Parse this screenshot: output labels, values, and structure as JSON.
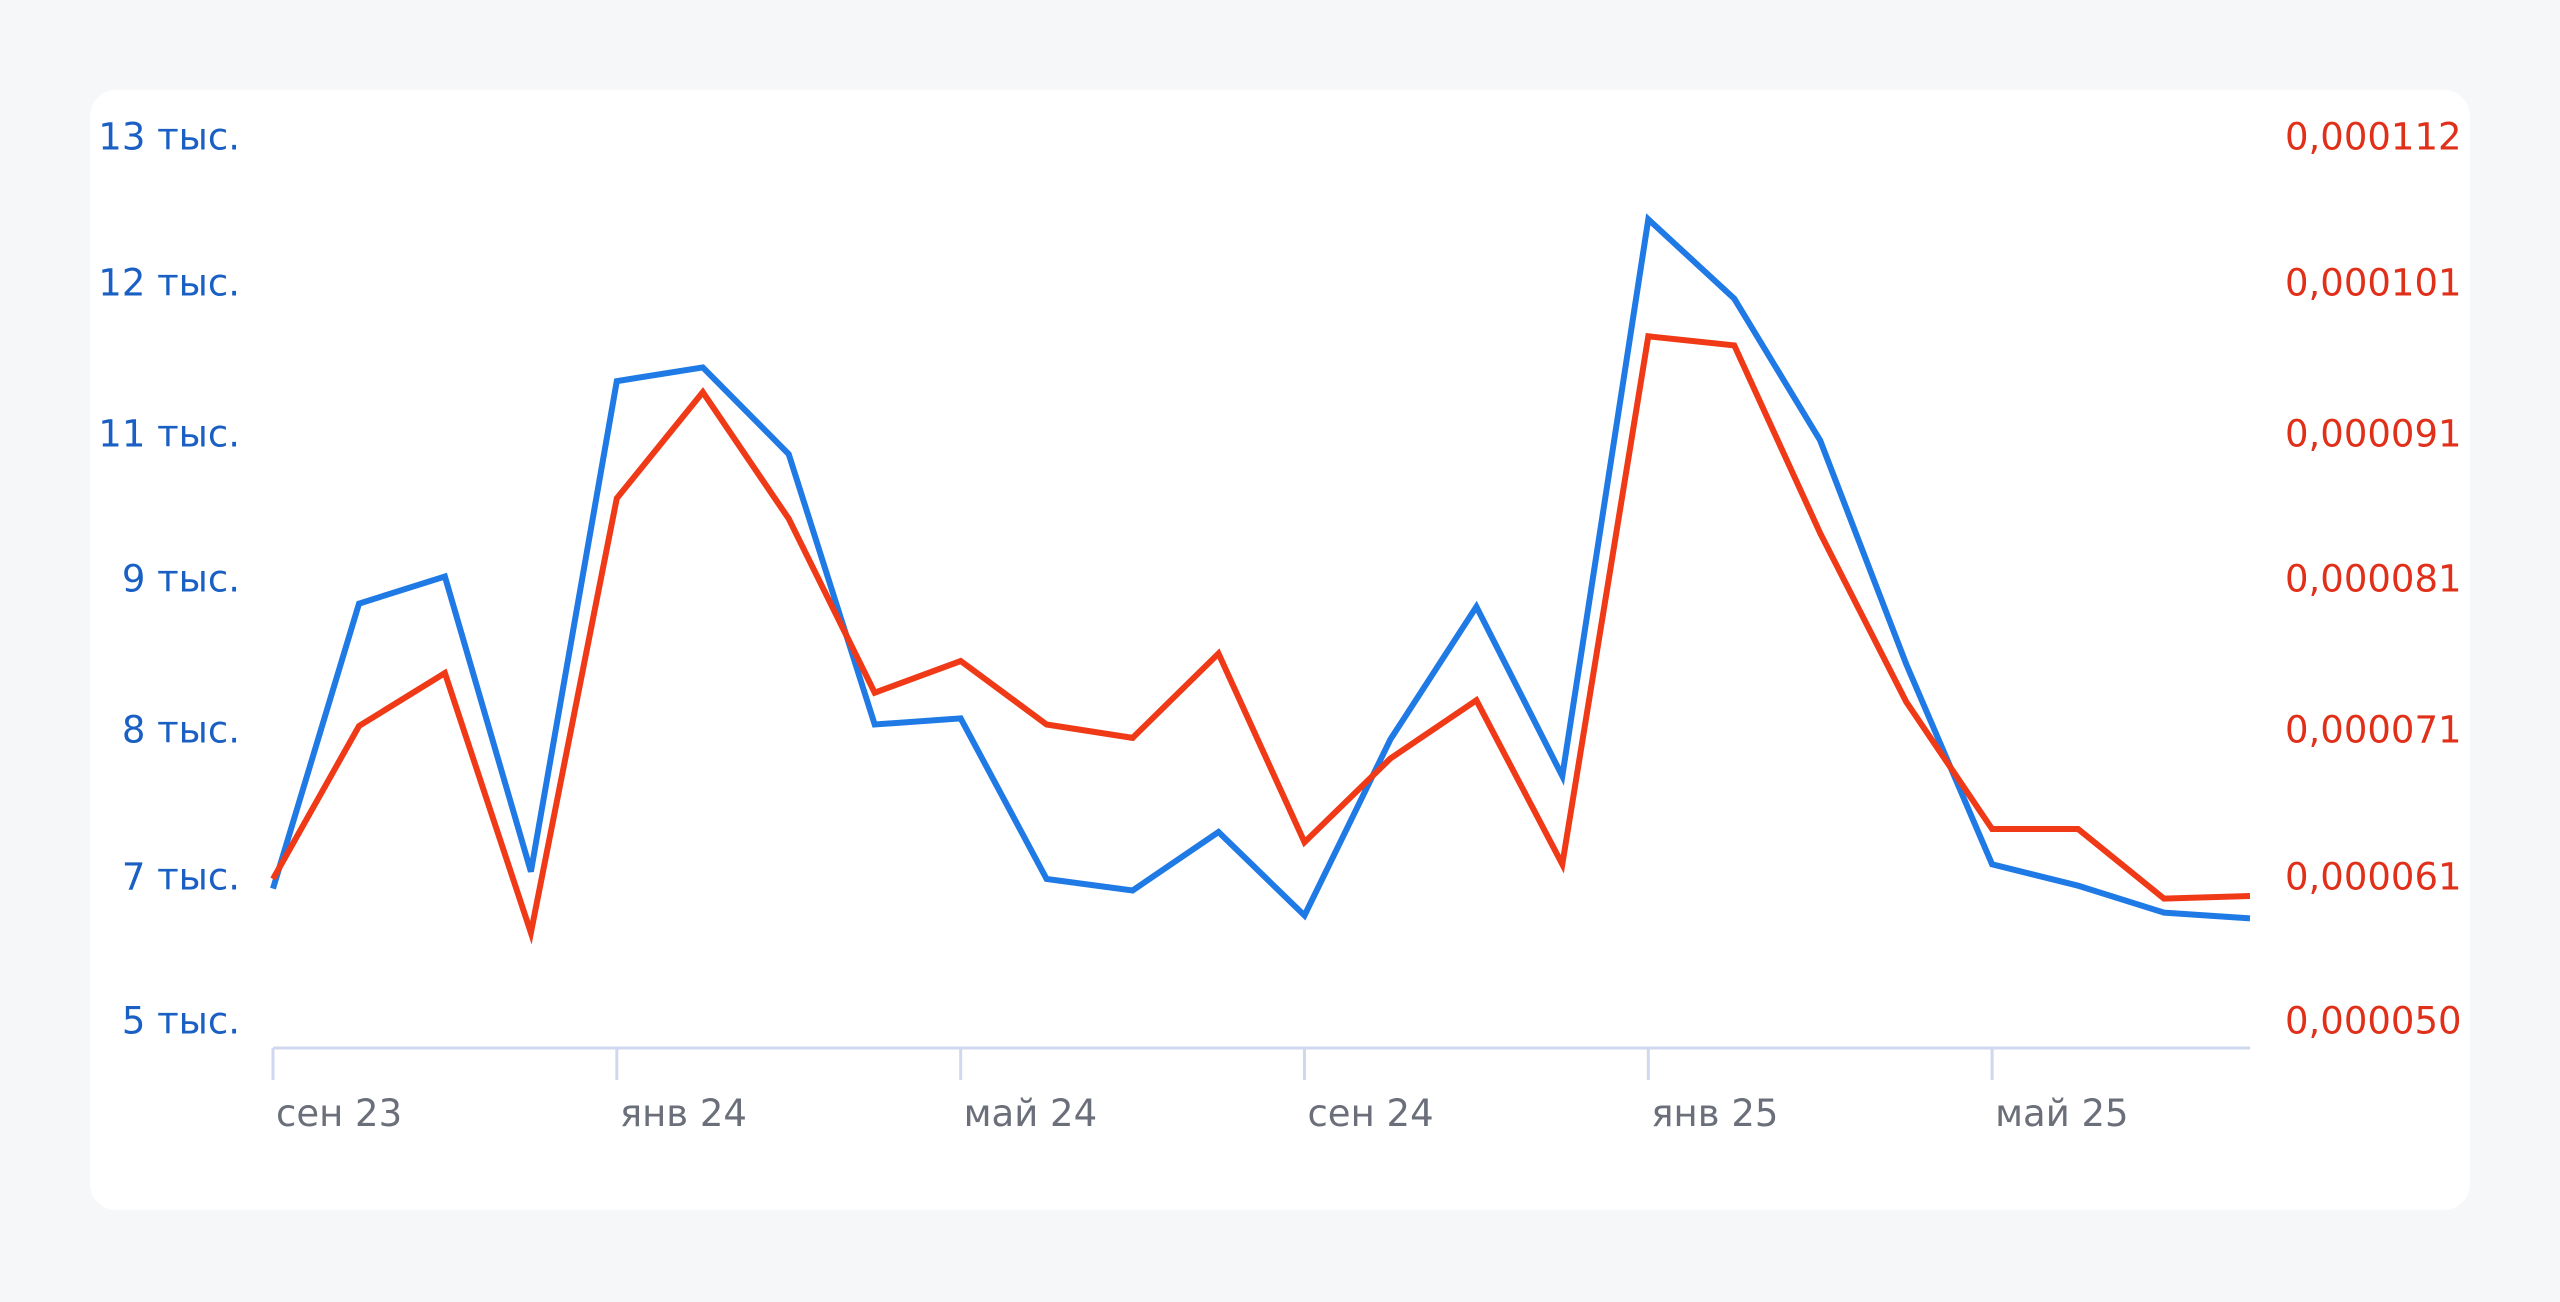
{
  "chart_data": {
    "type": "line",
    "x_labels": [
      "сен 23",
      "янв 24",
      "май 24",
      "сен 24",
      "янв 25",
      "май 25"
    ],
    "x": [
      "2023-09",
      "2023-10",
      "2023-11",
      "2023-12",
      "2024-01",
      "2024-02",
      "2024-03",
      "2024-04",
      "2024-05",
      "2024-06",
      "2024-07",
      "2024-08",
      "2024-09",
      "2024-10",
      "2024-11",
      "2024-12",
      "2025-01",
      "2025-02",
      "2025-03",
      "2025-04",
      "2025-05",
      "2025-06",
      "2025-07",
      "2025-08"
    ],
    "y_left_ticks": [
      "5 тыс.",
      "7 тыс.",
      "8 тыс.",
      "9 тыс.",
      "11 тыс.",
      "12 тыс.",
      "13 тыс."
    ],
    "y_left_ticks_values": [
      5400,
      6900,
      7900,
      8900,
      10500,
      11600,
      12600
    ],
    "y_right_ticks": [
      "0,000050",
      "0,000061",
      "0,000071",
      "0,000081",
      "0,000091",
      "0,000101",
      "0,000112"
    ],
    "y_right_ticks_values": [
      5e-05,
      6.1e-05,
      7.1e-05,
      8.1e-05,
      9.1e-05,
      0.000101,
      0.000112
    ],
    "series": [
      {
        "axis": "left",
        "color": "#1f7ae6",
        "values": [
          6800,
          8750,
          8950,
          6950,
          10900,
          11000,
          10300,
          7950,
          7990,
          6900,
          6780,
          7220,
          6520,
          7850,
          8730,
          7600,
          12050,
          11500,
          10450,
          8350,
          7000,
          6830,
          6550,
          6490
        ]
      },
      {
        "axis": "right",
        "color": "#f03a17",
        "values": [
          6.1e-05,
          7.14e-05,
          7.49e-05,
          5.69e-05,
          8.67e-05,
          9.39e-05,
          8.53e-05,
          7.36e-05,
          7.57e-05,
          7.15e-05,
          7.06e-05,
          7.62e-05,
          6.35e-05,
          6.92e-05,
          7.31e-05,
          6.2e-05,
          9.76e-05,
          9.7e-05,
          8.43e-05,
          7.3e-05,
          6.44e-05,
          6.44e-05,
          5.95e-05,
          5.97e-05
        ]
      }
    ]
  }
}
